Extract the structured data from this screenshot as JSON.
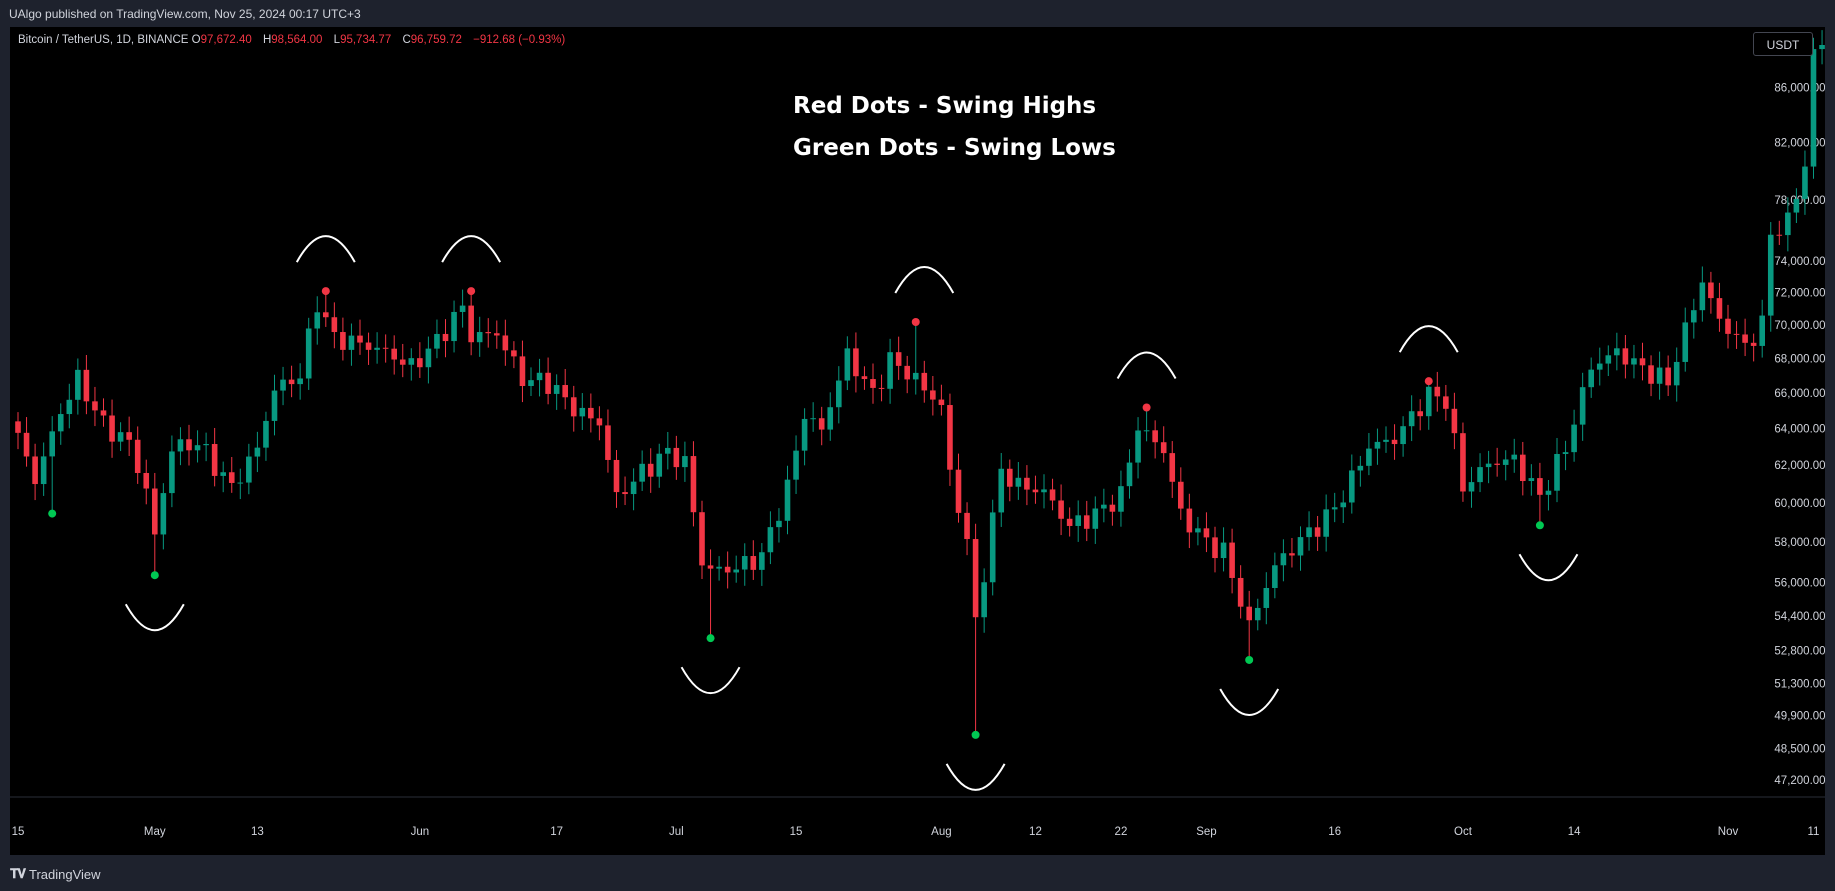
{
  "header": {
    "published_text": "UAlgo published on TradingView.com, Nov 25, 2024 00:17 UTC+3"
  },
  "legend": {
    "symbol": "Bitcoin / TetherUS, 1D, BINANCE",
    "open_label": "O",
    "open_value": "97,672.40",
    "high_label": "H",
    "high_value": "98,564.00",
    "low_label": "L",
    "low_value": "95,734.77",
    "close_label": "C",
    "close_value": "96,759.72",
    "change": "−912.68 (−0.93%)"
  },
  "currency_button": "USDT",
  "annotations": {
    "line1": "Red Dots - Swing Highs",
    "line2": "Green Dots - Swing Lows"
  },
  "footer": {
    "brand": "TradingView",
    "logo_icon": "tradingview-logo-icon"
  },
  "colors": {
    "up": "#089981",
    "down": "#f23645",
    "swing_high": "#f23645",
    "swing_low": "#00c853",
    "background": "#000000"
  },
  "chart_data": {
    "type": "candlestick",
    "ylim": [
      46500,
      90000
    ],
    "y_ticks": [
      "86,000.00",
      "82,000.00",
      "78,000.00",
      "74,000.00",
      "72,000.00",
      "70,000.00",
      "68,000.00",
      "66,000.00",
      "64,000.00",
      "62,000.00",
      "60,000.00",
      "58,000.00",
      "56,000.00",
      "54,400.00",
      "52,800.00",
      "51,300.00",
      "49,900.00",
      "48,500.00",
      "47,200.00"
    ],
    "y_tick_values": [
      86000,
      82000,
      78000,
      74000,
      72000,
      70000,
      68000,
      66000,
      64000,
      62000,
      60000,
      58000,
      56000,
      54400,
      52800,
      51300,
      49900,
      48500,
      47200
    ],
    "x_ticks": [
      {
        "label": "15",
        "date": "2024-04-15"
      },
      {
        "label": "May",
        "date": "2024-05-01"
      },
      {
        "label": "13",
        "date": "2024-05-13"
      },
      {
        "label": "Jun",
        "date": "2024-06-01"
      },
      {
        "label": "17",
        "date": "2024-06-17"
      },
      {
        "label": "Jul",
        "date": "2024-07-01"
      },
      {
        "label": "15",
        "date": "2024-07-15"
      },
      {
        "label": "Aug",
        "date": "2024-08-01"
      },
      {
        "label": "12",
        "date": "2024-08-12"
      },
      {
        "label": "22",
        "date": "2024-08-22"
      },
      {
        "label": "Sep",
        "date": "2024-09-01"
      },
      {
        "label": "16",
        "date": "2024-09-16"
      },
      {
        "label": "Oct",
        "date": "2024-10-01"
      },
      {
        "label": "14",
        "date": "2024-10-14"
      },
      {
        "label": "Nov",
        "date": "2024-11-01"
      },
      {
        "label": "11",
        "date": "2024-11-11"
      }
    ],
    "first_date": "2024-04-15",
    "close_waypoints": [
      [
        "2024-04-15",
        63500
      ],
      [
        "2024-04-17",
        61200
      ],
      [
        "2024-04-20",
        64900
      ],
      [
        "2024-04-22",
        66800
      ],
      [
        "2024-04-25",
        64200
      ],
      [
        "2024-04-28",
        63200
      ],
      [
        "2024-04-30",
        60600
      ],
      [
        "2024-05-01",
        58300
      ],
      [
        "2024-05-03",
        62900
      ],
      [
        "2024-05-06",
        63200
      ],
      [
        "2024-05-10",
        60800
      ],
      [
        "2024-05-13",
        62900
      ],
      [
        "2024-05-15",
        66200
      ],
      [
        "2024-05-18",
        67000
      ],
      [
        "2024-05-20",
        71400
      ],
      [
        "2024-05-22",
        69200
      ],
      [
        "2024-05-25",
        68900
      ],
      [
        "2024-05-28",
        68400
      ],
      [
        "2024-05-31",
        67500
      ],
      [
        "2024-06-03",
        69000
      ],
      [
        "2024-06-06",
        71100
      ],
      [
        "2024-06-07",
        69300
      ],
      [
        "2024-06-10",
        69500
      ],
      [
        "2024-06-13",
        66800
      ],
      [
        "2024-06-16",
        66600
      ],
      [
        "2024-06-19",
        65100
      ],
      [
        "2024-06-22",
        64300
      ],
      [
        "2024-06-24",
        60300
      ],
      [
        "2024-06-27",
        61600
      ],
      [
        "2024-06-30",
        62700
      ],
      [
        "2024-07-02",
        62100
      ],
      [
        "2024-07-04",
        57000
      ],
      [
        "2024-07-05",
        56600
      ],
      [
        "2024-07-08",
        56700
      ],
      [
        "2024-07-11",
        57300
      ],
      [
        "2024-07-14",
        60800
      ],
      [
        "2024-07-16",
        64800
      ],
      [
        "2024-07-18",
        63900
      ],
      [
        "2024-07-21",
        68200
      ],
      [
        "2024-07-24",
        65900
      ],
      [
        "2024-07-26",
        67900
      ],
      [
        "2024-07-29",
        66800
      ],
      [
        "2024-07-30",
        66200
      ],
      [
        "2024-08-01",
        65300
      ],
      [
        "2024-08-02",
        61500
      ],
      [
        "2024-08-04",
        58100
      ],
      [
        "2024-08-05",
        54000
      ],
      [
        "2024-08-08",
        61700
      ],
      [
        "2024-08-10",
        60900
      ],
      [
        "2024-08-13",
        60600
      ],
      [
        "2024-08-16",
        58800
      ],
      [
        "2024-08-19",
        59400
      ],
      [
        "2024-08-22",
        60400
      ],
      [
        "2024-08-24",
        64100
      ],
      [
        "2024-08-27",
        62800
      ],
      [
        "2024-08-29",
        59400
      ],
      [
        "2024-09-01",
        58000
      ],
      [
        "2024-09-03",
        57500
      ],
      [
        "2024-09-06",
        53900
      ],
      [
        "2024-09-09",
        56800
      ],
      [
        "2024-09-12",
        58100
      ],
      [
        "2024-09-15",
        59200
      ],
      [
        "2024-09-17",
        60400
      ],
      [
        "2024-09-20",
        63000
      ],
      [
        "2024-09-23",
        63400
      ],
      [
        "2024-09-27",
        65900
      ],
      [
        "2024-09-29",
        65600
      ],
      [
        "2024-10-01",
        60800
      ],
      [
        "2024-10-04",
        62100
      ],
      [
        "2024-10-07",
        62300
      ],
      [
        "2024-10-10",
        60300
      ],
      [
        "2024-10-13",
        62900
      ],
      [
        "2024-10-16",
        67500
      ],
      [
        "2024-10-19",
        68400
      ],
      [
        "2024-10-22",
        67400
      ],
      [
        "2024-10-25",
        66600
      ],
      [
        "2024-10-29",
        72700
      ],
      [
        "2024-10-31",
        70300
      ],
      [
        "2024-11-03",
        68700
      ],
      [
        "2024-11-05",
        70000
      ],
      [
        "2024-11-06",
        75800
      ],
      [
        "2024-11-08",
        76500
      ],
      [
        "2024-11-10",
        80400
      ],
      [
        "2024-11-11",
        88600
      ],
      [
        "2024-11-13",
        90000
      ],
      [
        "2024-11-14",
        87300
      ]
    ],
    "swing_highs": [
      {
        "date": "2024-05-21",
        "value": 71900
      },
      {
        "date": "2024-06-07",
        "value": 71900
      },
      {
        "date": "2024-07-29",
        "value": 70000
      },
      {
        "date": "2024-08-25",
        "value": 65000
      },
      {
        "date": "2024-09-27",
        "value": 66500
      }
    ],
    "swing_lows": [
      {
        "date": "2024-04-19",
        "value": 59600
      },
      {
        "date": "2024-05-01",
        "value": 56500
      },
      {
        "date": "2024-07-05",
        "value": 53500
      },
      {
        "date": "2024-08-05",
        "value": 49200
      },
      {
        "date": "2024-09-06",
        "value": 52500
      },
      {
        "date": "2024-10-10",
        "value": 59000
      }
    ],
    "highlight_arcs": [
      {
        "date": "2024-05-01",
        "kind": "below"
      },
      {
        "date": "2024-05-21",
        "kind": "above"
      },
      {
        "date": "2024-06-07",
        "kind": "above"
      },
      {
        "date": "2024-07-05",
        "kind": "below"
      },
      {
        "date": "2024-07-30",
        "kind": "above"
      },
      {
        "date": "2024-08-05",
        "kind": "below"
      },
      {
        "date": "2024-08-25",
        "kind": "above"
      },
      {
        "date": "2024-09-06",
        "kind": "below"
      },
      {
        "date": "2024-09-27",
        "kind": "above"
      },
      {
        "date": "2024-10-11",
        "kind": "below"
      }
    ]
  }
}
